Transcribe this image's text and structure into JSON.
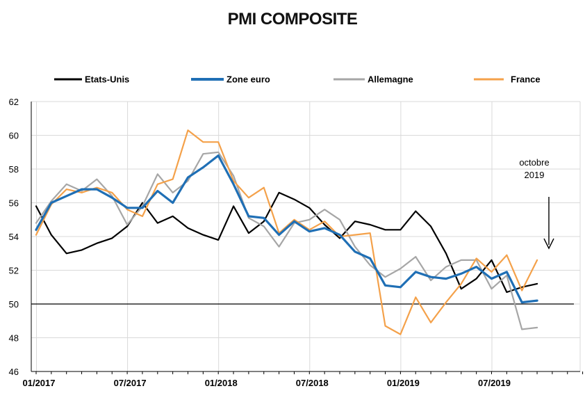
{
  "chart_data": {
    "type": "line",
    "title": "PMI COMPOSITE",
    "ylim": [
      46,
      62
    ],
    "yticks": [
      46,
      48,
      50,
      52,
      54,
      56,
      58,
      60,
      62
    ],
    "xtick_labels": [
      "01/2017",
      "07/2017",
      "01/2018",
      "07/2018",
      "01/2019",
      "07/2019"
    ],
    "x": [
      "01/2017",
      "02/2017",
      "03/2017",
      "04/2017",
      "05/2017",
      "06/2017",
      "07/2017",
      "08/2017",
      "09/2017",
      "10/2017",
      "11/2017",
      "12/2017",
      "01/2018",
      "02/2018",
      "03/2018",
      "04/2018",
      "05/2018",
      "06/2018",
      "07/2018",
      "08/2018",
      "09/2018",
      "10/2018",
      "11/2018",
      "12/2018",
      "01/2019",
      "02/2019",
      "03/2019",
      "04/2019",
      "05/2019",
      "06/2019",
      "07/2019",
      "08/2019",
      "09/2019",
      "10/2019"
    ],
    "reference_line": 50,
    "grid": true,
    "legend_position": "top",
    "series": [
      {
        "name": "Etats-Unis",
        "color": "#000000",
        "values": [
          55.8,
          54.1,
          53.0,
          53.2,
          53.6,
          53.9,
          54.6,
          56.0,
          54.8,
          55.2,
          54.5,
          54.1,
          53.8,
          55.8,
          54.2,
          54.9,
          56.6,
          56.2,
          55.7,
          54.7,
          53.9,
          54.9,
          54.7,
          54.4,
          54.4,
          55.5,
          54.6,
          53.0,
          50.9,
          51.5,
          52.6,
          50.7,
          51.0,
          51.2
        ]
      },
      {
        "name": "Zone euro",
        "color": "#1f6fb5",
        "values": [
          54.4,
          56.0,
          56.4,
          56.8,
          56.8,
          56.3,
          55.7,
          55.7,
          56.7,
          56.0,
          57.5,
          58.1,
          58.8,
          57.1,
          55.2,
          55.1,
          54.1,
          54.9,
          54.3,
          54.5,
          54.1,
          53.1,
          52.7,
          51.1,
          51.0,
          51.9,
          51.6,
          51.5,
          51.8,
          52.2,
          51.5,
          51.9,
          50.1,
          50.2
        ]
      },
      {
        "name": "Allemagne",
        "color": "#a6a6a6",
        "values": [
          54.8,
          56.1,
          57.1,
          56.7,
          57.4,
          56.4,
          54.7,
          55.8,
          57.7,
          56.6,
          57.3,
          58.9,
          59.0,
          57.6,
          55.1,
          54.6,
          53.4,
          54.8,
          55.0,
          55.6,
          55.0,
          53.4,
          52.3,
          51.6,
          52.1,
          52.8,
          51.4,
          52.2,
          52.6,
          52.6,
          50.9,
          51.7,
          48.5,
          48.6
        ]
      },
      {
        "name": "France",
        "color": "#f4a14a",
        "values": [
          54.1,
          55.9,
          56.8,
          56.6,
          56.9,
          56.6,
          55.6,
          55.2,
          57.1,
          57.4,
          60.3,
          59.6,
          59.6,
          57.3,
          56.3,
          56.9,
          54.2,
          55.0,
          54.4,
          54.9,
          54.0,
          54.1,
          54.2,
          48.7,
          48.2,
          50.4,
          48.9,
          50.1,
          51.2,
          52.7,
          51.9,
          52.9,
          50.8,
          52.6
        ]
      }
    ],
    "annotation": {
      "line1": "octobre",
      "line2": "2019"
    }
  }
}
